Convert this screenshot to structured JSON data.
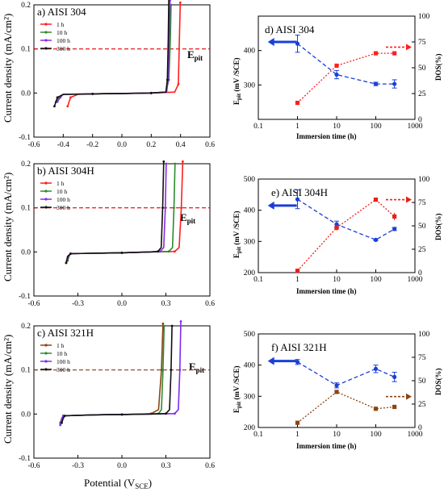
{
  "figure": {
    "x_label": "Potential (V",
    "x_label_sub": "SCE",
    "x_label_end": ")"
  },
  "left_panels": [
    {
      "title": "a) AISI 304",
      "ylabel": "Current density (mA/cm²)",
      "epit_label": "E",
      "epit_sub": "pit"
    },
    {
      "title": "b) AISI 304H",
      "ylabel": "Current density (mA/cm²)",
      "epit_label": "E",
      "epit_sub": "pit"
    },
    {
      "title": "c) AISI 321H",
      "ylabel": "Current density (mA/cm²)",
      "epit_label": "E",
      "epit_sub": "pit"
    }
  ],
  "right_panels": [
    {
      "title": "d) AISI 304",
      "ylabel_main": "E",
      "ylabel_sub": "pit",
      "ylabel_rest": " (mV /SCE)",
      "ylabel_right": "DOS(%)",
      "xlabel": "Immersion time (h)"
    },
    {
      "title": "e) AISI 304H",
      "ylabel_main": "E",
      "ylabel_sub": "pit",
      "ylabel_rest": " (mV /SCE)",
      "ylabel_right": "DOS(%)",
      "xlabel": "Immersion time (h)"
    },
    {
      "title": "f) AISI 321H",
      "ylabel_main": "E",
      "ylabel_sub": "pit",
      "ylabel_rest": " (mV /SCE)",
      "ylabel_right": "DOS(%)",
      "xlabel": "Immersion time (h)"
    }
  ],
  "chart_data": [
    {
      "id": "a",
      "type": "line",
      "xlim": [
        -0.6,
        0.6
      ],
      "ylim": [
        -0.1,
        0.2
      ],
      "xticks": [
        "-0.6",
        "-0.4",
        "-0.2",
        "0.0",
        "0.2",
        "0.4",
        "0.6"
      ],
      "xtick_values": [
        -0.6,
        -0.4,
        -0.2,
        0.0,
        0.2,
        0.4,
        0.6
      ],
      "yticks": [
        "-0.1",
        "0.0",
        "0.1",
        "0.2"
      ],
      "ytick_values": [
        -0.1,
        0.0,
        0.1,
        0.2
      ],
      "epit_level": 0.1,
      "epit_color": "#e00000",
      "series": [
        {
          "name": "1 h",
          "color": "#ff1f1f",
          "x": [
            -0.37,
            -0.36,
            -0.35,
            -0.3,
            -0.2,
            0.0,
            0.2,
            0.36,
            0.385,
            0.392,
            0.398
          ],
          "y": [
            -0.03,
            -0.02,
            -0.01,
            -0.003,
            -0.002,
            -0.001,
            0.0,
            0.002,
            0.02,
            0.12,
            0.205
          ]
        },
        {
          "name": "10 h",
          "color": "#2e8b2e",
          "x": [
            -0.45,
            -0.44,
            -0.43,
            -0.4,
            -0.2,
            0.0,
            0.2,
            0.3,
            0.32,
            0.33,
            0.335
          ],
          "y": [
            -0.02,
            -0.015,
            -0.01,
            -0.003,
            -0.002,
            -0.001,
            0.0,
            0.002,
            0.03,
            0.12,
            0.2
          ]
        },
        {
          "name": "100 h",
          "color": "#8a2be2",
          "x": [
            -0.44,
            -0.43,
            -0.42,
            -0.4,
            -0.2,
            0.0,
            0.2,
            0.305,
            0.315,
            0.322,
            0.328
          ],
          "y": [
            -0.02,
            -0.015,
            -0.01,
            -0.003,
            -0.002,
            -0.001,
            0.0,
            0.002,
            0.03,
            0.12,
            0.21
          ]
        },
        {
          "name": "300 h",
          "color": "#111111",
          "x": [
            -0.46,
            -0.45,
            -0.44,
            -0.4,
            -0.2,
            0.0,
            0.2,
            0.3,
            0.31,
            0.316,
            0.32
          ],
          "y": [
            -0.03,
            -0.02,
            -0.01,
            -0.003,
            -0.002,
            -0.001,
            0.0,
            0.002,
            0.03,
            0.12,
            0.215
          ]
        }
      ]
    },
    {
      "id": "b",
      "type": "line",
      "xlim": [
        -0.6,
        0.6
      ],
      "ylim": [
        -0.1,
        0.2
      ],
      "xticks": [
        "-0.6",
        "-0.3",
        "0.0",
        "0.3",
        "0.6"
      ],
      "xtick_values": [
        -0.6,
        -0.3,
        0.0,
        0.3,
        0.6
      ],
      "yticks": [
        "-0.1",
        "0.0",
        "0.1",
        "0.2"
      ],
      "ytick_values": [
        -0.1,
        0.0,
        0.1,
        0.2
      ],
      "epit_level": 0.1,
      "epit_color": "#e00000",
      "series": [
        {
          "name": "1 h",
          "color": "#ff1f1f",
          "x": [
            -0.38,
            -0.37,
            -0.35,
            -0.2,
            0.0,
            0.2,
            0.36,
            0.39,
            0.405,
            0.415
          ],
          "y": [
            -0.025,
            -0.01,
            -0.004,
            -0.003,
            -0.002,
            0.0,
            0.001,
            0.01,
            0.1,
            0.205
          ]
        },
        {
          "name": "10 h",
          "color": "#2e8b2e",
          "x": [
            -0.37,
            -0.36,
            -0.35,
            -0.2,
            0.0,
            0.2,
            0.32,
            0.345,
            0.355,
            0.362
          ],
          "y": [
            -0.02,
            -0.01,
            -0.004,
            -0.003,
            -0.002,
            0.0,
            0.001,
            0.01,
            0.1,
            0.2
          ]
        },
        {
          "name": "100 h",
          "color": "#8a2be2",
          "x": [
            -0.375,
            -0.365,
            -0.35,
            -0.2,
            0.0,
            0.2,
            0.26,
            0.285,
            0.296,
            0.302
          ],
          "y": [
            -0.02,
            -0.01,
            -0.004,
            -0.003,
            -0.002,
            0.0,
            0.001,
            0.01,
            0.1,
            0.2
          ]
        },
        {
          "name": "300 h",
          "color": "#111111",
          "x": [
            -0.38,
            -0.37,
            -0.35,
            -0.2,
            0.0,
            0.2,
            0.245,
            0.268,
            0.278,
            0.285
          ],
          "y": [
            -0.025,
            -0.01,
            -0.004,
            -0.003,
            -0.002,
            0.0,
            0.001,
            0.01,
            0.1,
            0.205
          ]
        }
      ]
    },
    {
      "id": "c",
      "type": "line",
      "xlim": [
        -0.6,
        0.6
      ],
      "ylim": [
        -0.1,
        0.2
      ],
      "xticks": [
        "-0.6",
        "-0.3",
        "0.0",
        "0.3",
        "0.6"
      ],
      "xtick_values": [
        -0.6,
        -0.3,
        0.0,
        0.3,
        0.6
      ],
      "yticks": [
        "-0.1",
        "0.0",
        "0.1",
        "0.2"
      ],
      "ytick_values": [
        -0.1,
        0.0,
        0.1,
        0.2
      ],
      "epit_level": 0.1,
      "epit_color": "#8b3a1a",
      "series": [
        {
          "name": "1 h",
          "color": "#8b4513",
          "x": [
            -0.42,
            -0.41,
            -0.4,
            -0.2,
            0.0,
            0.15,
            0.2,
            0.25,
            0.27,
            0.28
          ],
          "y": [
            -0.02,
            -0.01,
            -0.004,
            -0.002,
            -0.001,
            0.0,
            0.001,
            0.01,
            0.1,
            0.205
          ]
        },
        {
          "name": "10 h",
          "color": "#2e8b2e",
          "x": [
            -0.42,
            -0.41,
            -0.4,
            -0.2,
            0.0,
            0.2,
            0.25,
            0.27,
            0.28,
            0.288
          ],
          "y": [
            -0.02,
            -0.01,
            -0.004,
            -0.002,
            -0.001,
            0.0,
            0.001,
            0.01,
            0.1,
            0.2
          ]
        },
        {
          "name": "100 h",
          "color": "#7b2cf0",
          "x": [
            -0.42,
            -0.41,
            -0.4,
            -0.2,
            0.0,
            0.2,
            0.36,
            0.385,
            0.395,
            0.402
          ],
          "y": [
            -0.025,
            -0.01,
            -0.004,
            -0.002,
            -0.001,
            0.0,
            0.001,
            0.01,
            0.1,
            0.21
          ]
        },
        {
          "name": "300 h",
          "color": "#111111",
          "x": [
            -0.41,
            -0.4,
            -0.39,
            -0.2,
            0.0,
            0.2,
            0.3,
            0.325,
            0.335,
            0.342
          ],
          "y": [
            -0.02,
            -0.01,
            -0.004,
            -0.002,
            -0.001,
            0.0,
            0.001,
            0.01,
            0.1,
            0.2
          ]
        }
      ]
    },
    {
      "id": "d",
      "type": "line",
      "xscale": "log",
      "xlim": [
        0.1,
        1000
      ],
      "ylim": [
        200,
        500
      ],
      "y2lim": [
        0,
        100
      ],
      "xticks": [
        "0.1",
        "1",
        "10",
        "100",
        "1000"
      ],
      "xtick_values": [
        0.1,
        1,
        10,
        100,
        1000
      ],
      "yticks": [
        "300",
        "400"
      ],
      "ytick_values": [
        300,
        400
      ],
      "y2ticks": [
        "0",
        "25",
        "50",
        "75",
        "100"
      ],
      "y2tick_values": [
        0,
        25,
        50,
        75,
        100
      ],
      "epit": {
        "color": "#1a3fd8",
        "x": [
          1,
          10,
          100,
          300
        ],
        "y": [
          420,
          330,
          303,
          303
        ],
        "err": [
          25,
          12,
          5,
          12
        ]
      },
      "dos": {
        "color": "#ff1f1f",
        "x": [
          1,
          10,
          100,
          300
        ],
        "y": [
          16,
          52,
          64,
          64
        ]
      },
      "arrow_left": {
        "x": 0.45,
        "y": 425
      },
      "arrow_right_dos": 70
    },
    {
      "id": "e",
      "type": "line",
      "xscale": "log",
      "xlim": [
        0.1,
        1000
      ],
      "ylim": [
        200,
        500
      ],
      "y2lim": [
        0,
        100
      ],
      "xticks": [
        "0.1",
        "1",
        "10",
        "100",
        "1000"
      ],
      "xtick_values": [
        0.1,
        1,
        10,
        100,
        1000
      ],
      "yticks": [
        "200",
        "300",
        "400",
        "500"
      ],
      "ytick_values": [
        200,
        300,
        400,
        500
      ],
      "y2ticks": [
        "0",
        "25",
        "50",
        "75",
        "100"
      ],
      "y2tick_values": [
        0,
        25,
        50,
        75,
        100
      ],
      "epit": {
        "color": "#1a3fd8",
        "x": [
          1,
          10,
          100,
          300
        ],
        "y": [
          435,
          355,
          305,
          340
        ],
        "err": [
          30,
          10,
          3,
          5
        ]
      },
      "dos": {
        "color": "#e8201a",
        "x": [
          1,
          10,
          100,
          300
        ],
        "y": [
          2,
          48,
          78,
          60
        ],
        "err": [
          0,
          3,
          0,
          4
        ]
      },
      "arrow_left": {
        "x": 0.45,
        "y": 415
      },
      "arrow_right_dos": 78
    },
    {
      "id": "f",
      "type": "line",
      "xscale": "log",
      "xlim": [
        0.1,
        1000
      ],
      "ylim": [
        200,
        500
      ],
      "y2lim": [
        0,
        100
      ],
      "xticks": [
        "0.1",
        "1",
        "10",
        "100",
        "1000"
      ],
      "xtick_values": [
        0.1,
        1,
        10,
        100,
        1000
      ],
      "yticks": [
        "200",
        "300",
        "400",
        "500"
      ],
      "ytick_values": [
        200,
        300,
        400,
        500
      ],
      "y2ticks": [
        "0",
        "25",
        "50",
        "75",
        "100"
      ],
      "y2tick_values": [
        0,
        25,
        50,
        75,
        100
      ],
      "epit": {
        "color": "#1a3fd8",
        "x": [
          1,
          10,
          100,
          300
        ],
        "y": [
          410,
          335,
          388,
          362
        ],
        "err": [
          8,
          8,
          12,
          15
        ]
      },
      "dos": {
        "color": "#8b4513",
        "x": [
          1,
          10,
          100,
          300
        ],
        "y": [
          5,
          38,
          20,
          22
        ]
      },
      "arrow_left": {
        "x": 0.45,
        "y": 413
      },
      "arrow_right_dos": 33
    }
  ]
}
